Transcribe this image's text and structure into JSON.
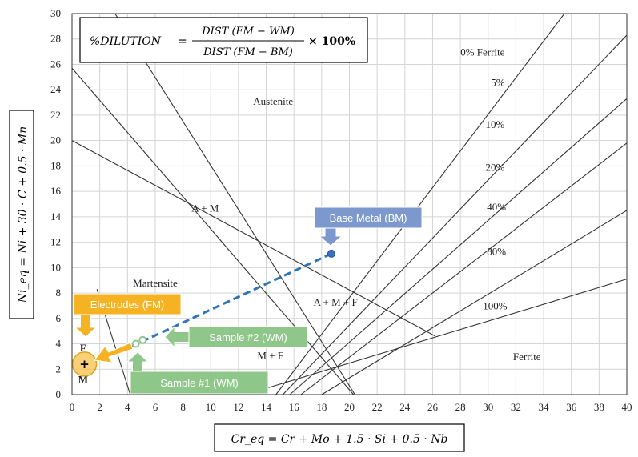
{
  "chart_data": {
    "type": "line",
    "title": "",
    "xlabel": "Cr_eq = Cr + Mo + 1.5 · Si + 0.5 · Nb",
    "ylabel": "Ni_eq = Ni + 30 · C + 0.5 · Mn",
    "xlim": [
      0,
      40
    ],
    "ylim": [
      0,
      30
    ],
    "xticks": [
      0,
      2,
      4,
      6,
      8,
      10,
      12,
      14,
      16,
      18,
      20,
      22,
      24,
      26,
      28,
      30,
      32,
      34,
      36,
      38,
      40
    ],
    "yticks": [
      0,
      2,
      4,
      6,
      8,
      10,
      12,
      14,
      16,
      18,
      20,
      22,
      24,
      26,
      28,
      30
    ],
    "grid": true,
    "formula": {
      "lhs": "%DILUTION",
      "numerator": "DIST (FM − WM)",
      "denominator": "DIST (FM − BM)",
      "rhs": "× 100%"
    },
    "boundary_lines": [
      {
        "x": [
          0,
          20.3
        ],
        "y": [
          25.7,
          0
        ]
      },
      {
        "x": [
          0,
          26.2
        ],
        "y": [
          20,
          4.6
        ]
      },
      {
        "x": [
          3.1,
          20.4
        ],
        "y": [
          30,
          0
        ]
      },
      {
        "x": [
          1.8,
          4.2
        ],
        "y": [
          8.3,
          0
        ]
      },
      {
        "x": [
          12.5,
          40
        ],
        "y": [
          0,
          9.1
        ]
      }
    ],
    "ferrite_lines": [
      {
        "label": "0% Ferrite",
        "x": [
          14.7,
          35.5
        ],
        "y": [
          0,
          30
        ]
      },
      {
        "label": "5%",
        "x": [
          15.2,
          40
        ],
        "y": [
          0,
          28.3
        ]
      },
      {
        "label": "10%",
        "x": [
          15.7,
          40
        ],
        "y": [
          0,
          23.3
        ]
      },
      {
        "label": "20%",
        "x": [
          16.5,
          40
        ],
        "y": [
          0,
          19.8
        ]
      },
      {
        "label": "40%",
        "x": [
          18.0,
          40
        ],
        "y": [
          0,
          14.5
        ]
      }
    ],
    "ferrite_labels": [
      {
        "label": "0% Ferrite",
        "x": 29.6,
        "y": 26.7
      },
      {
        "label": "5%",
        "x": 30.7,
        "y": 24.3
      },
      {
        "label": "10%",
        "x": 30.5,
        "y": 21.0
      },
      {
        "label": "20%",
        "x": 30.5,
        "y": 17.6
      },
      {
        "label": "40%",
        "x": 30.6,
        "y": 14.5
      },
      {
        "label": "80%",
        "x": 30.6,
        "y": 11.0
      },
      {
        "label": "100%",
        "x": 30.5,
        "y": 6.7
      }
    ],
    "regions": [
      {
        "label": "Austenite",
        "x": 14.5,
        "y": 22.8
      },
      {
        "label": "A + M",
        "x": 9.6,
        "y": 14.4
      },
      {
        "label": "Martensite",
        "x": 6.0,
        "y": 8.5
      },
      {
        "label": "A + M + F",
        "x": 19.0,
        "y": 7.0
      },
      {
        "label": "M + F",
        "x": 14.3,
        "y": 2.8
      },
      {
        "label": "Ferrite",
        "x": 32.8,
        "y": 2.7
      },
      {
        "label": "F",
        "x": 0.8,
        "y": 3.4
      },
      {
        "label": "M",
        "x": 0.8,
        "y": 0.9
      }
    ],
    "dilution_line": {
      "x": [
        4.3,
        18.7
      ],
      "y": [
        3.8,
        11.1
      ]
    },
    "points": [
      {
        "name": "Base Metal (BM)",
        "x": 18.7,
        "y": 11.1
      },
      {
        "name": "Sample #2 (WM)",
        "x": 5.1,
        "y": 4.3
      },
      {
        "name": "Sample #1 (WM)",
        "x": 4.6,
        "y": 4.0
      },
      {
        "name": "Electrodes (FM)",
        "x": 0.9,
        "y": 2.4
      }
    ],
    "callouts": [
      {
        "label": "Electrodes (FM)",
        "color": "#f5b323"
      },
      {
        "label": "Base Metal (BM)",
        "color": "#7d98cc"
      },
      {
        "label": "Sample #2 (WM)",
        "color": "#8fc78a"
      },
      {
        "label": "Sample #1 (WM)",
        "color": "#8fc78a"
      }
    ],
    "colors": {
      "dilution_line": "#2e75b6",
      "bm_point": "#3d6fc3",
      "wm_point": "#8fc78a",
      "fm_marker": "#f5c04a"
    }
  }
}
